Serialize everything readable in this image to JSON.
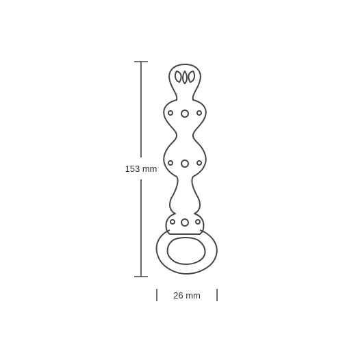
{
  "dimensions": {
    "height_label": "153 mm",
    "width_label": "26 mm"
  },
  "colors": {
    "outline": "#444444",
    "text": "#333333",
    "background": "#ffffff"
  }
}
